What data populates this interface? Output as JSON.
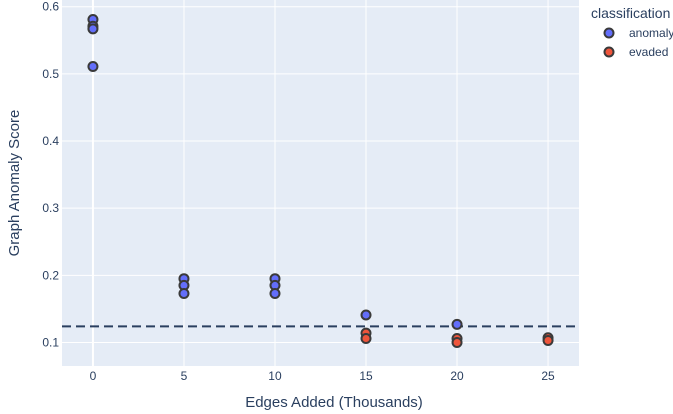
{
  "chart_data": {
    "type": "scatter",
    "xlabel": "Edges Added (Thousands)",
    "ylabel": "Graph Anomaly Score",
    "xlim": [
      -1.7,
      26.7
    ],
    "ylim": [
      0.065,
      0.61
    ],
    "x_ticks": [
      0,
      5,
      10,
      15,
      20,
      25
    ],
    "y_ticks": [
      0.1,
      0.2,
      0.3,
      0.4,
      0.5,
      0.6
    ],
    "grid": true,
    "threshold": 0.124,
    "legend": {
      "title": "classification",
      "placement": "top-right",
      "entries": [
        "anomaly",
        "evaded"
      ]
    },
    "series": [
      {
        "name": "anomaly",
        "color": "#636efa",
        "points": [
          {
            "x": 0,
            "y": 0.581
          },
          {
            "x": 0,
            "y": 0.571
          },
          {
            "x": 0,
            "y": 0.567
          },
          {
            "x": 0,
            "y": 0.511
          },
          {
            "x": 5,
            "y": 0.195
          },
          {
            "x": 5,
            "y": 0.185
          },
          {
            "x": 5,
            "y": 0.173
          },
          {
            "x": 10,
            "y": 0.195
          },
          {
            "x": 10,
            "y": 0.185
          },
          {
            "x": 10,
            "y": 0.173
          },
          {
            "x": 15,
            "y": 0.141
          },
          {
            "x": 20,
            "y": 0.127
          }
        ]
      },
      {
        "name": "evaded",
        "color": "#ef553b",
        "points": [
          {
            "x": 15,
            "y": 0.114
          },
          {
            "x": 15,
            "y": 0.106
          },
          {
            "x": 20,
            "y": 0.106
          },
          {
            "x": 20,
            "y": 0.1
          },
          {
            "x": 25,
            "y": 0.107
          },
          {
            "x": 25,
            "y": 0.103
          }
        ]
      }
    ]
  }
}
